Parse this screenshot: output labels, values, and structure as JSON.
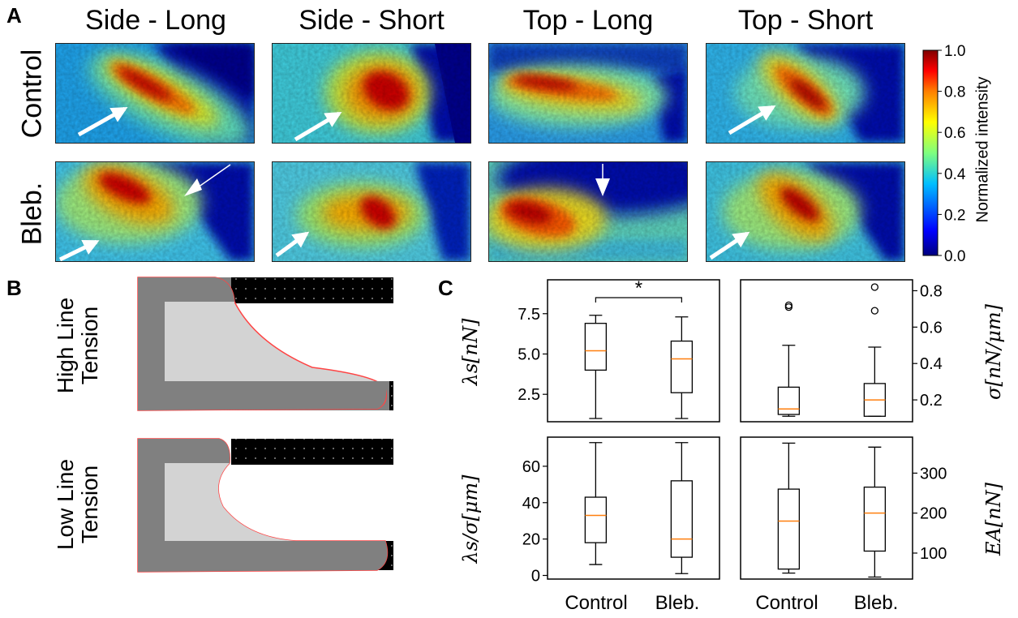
{
  "panels": {
    "a": "A",
    "b": "B",
    "c": "C"
  },
  "heatmaps": {
    "columns": [
      "Side - Long",
      "Side - Short",
      "Top - Long",
      "Top - Short"
    ],
    "rows": [
      "Control",
      "Bleb."
    ]
  },
  "colorbar": {
    "label": "Normalized intensity",
    "ticks": [
      "1.0",
      "0.8",
      "0.6",
      "0.4",
      "0.2",
      "0.0"
    ],
    "colors": [
      "#00007f",
      "#0000ff",
      "#00bfff",
      "#7fff7f",
      "#ffff00",
      "#ff7f00",
      "#ff0000",
      "#7f0000"
    ]
  },
  "schematic": {
    "rows": [
      {
        "line1": "High Line",
        "line2": "Tension"
      },
      {
        "line1": "Low Line",
        "line2": "Tension"
      }
    ],
    "colors": {
      "outer": "#808080",
      "inner": "#d3d3d3",
      "outline": "#ff4444",
      "pillar": "#000000"
    }
  },
  "boxplots": {
    "x_labels": [
      "Control",
      "Bleb."
    ],
    "significance": "*",
    "median_color": "#ff7f0e",
    "axes": [
      {
        "ylabel": "λs[nN]",
        "side": "left",
        "ticks": [
          "2.5",
          "5.0",
          "7.5"
        ]
      },
      {
        "ylabel": "σ[nN/μm]",
        "side": "right",
        "ticks": [
          "0.2",
          "0.4",
          "0.6",
          "0.8"
        ]
      },
      {
        "ylabel": "λs/σ[μm]",
        "side": "left",
        "ticks": [
          "0",
          "20",
          "40",
          "60"
        ]
      },
      {
        "ylabel": "EA[nN]",
        "side": "right",
        "ticks": [
          "100",
          "200",
          "300"
        ]
      }
    ]
  },
  "chart_data": [
    {
      "type": "box",
      "ylabel": "λs[nN]",
      "categories": [
        "Control",
        "Bleb."
      ],
      "ylim": [
        0.8,
        9.6
      ],
      "boxes": [
        {
          "whisker_low": 1.0,
          "q1": 4.0,
          "median": 5.2,
          "q3": 6.9,
          "whisker_high": 7.4,
          "outliers": []
        },
        {
          "whisker_low": 1.0,
          "q1": 2.6,
          "median": 4.7,
          "q3": 5.8,
          "whisker_high": 7.3,
          "outliers": []
        }
      ]
    },
    {
      "type": "box",
      "ylabel": "σ[nN/μm]",
      "categories": [
        "Control",
        "Bleb."
      ],
      "ylim": [
        0.08,
        0.86
      ],
      "boxes": [
        {
          "whisker_low": 0.11,
          "q1": 0.12,
          "median": 0.15,
          "q3": 0.27,
          "whisker_high": 0.5,
          "outliers": [
            0.71,
            0.72
          ]
        },
        {
          "whisker_low": 0.11,
          "q1": 0.11,
          "median": 0.2,
          "q3": 0.29,
          "whisker_high": 0.49,
          "outliers": [
            0.69,
            0.82
          ]
        }
      ]
    },
    {
      "type": "box",
      "ylabel": "λs/σ[μm]",
      "categories": [
        "Control",
        "Bleb."
      ],
      "ylim": [
        -2,
        76
      ],
      "boxes": [
        {
          "whisker_low": 6,
          "q1": 18,
          "median": 33,
          "q3": 43,
          "whisker_high": 73,
          "outliers": []
        },
        {
          "whisker_low": 1,
          "q1": 10,
          "median": 20,
          "q3": 52,
          "whisker_high": 73,
          "outliers": []
        }
      ]
    },
    {
      "type": "box",
      "ylabel": "EA[nN]",
      "categories": [
        "Control",
        "Bleb."
      ],
      "ylim": [
        35,
        390
      ],
      "boxes": [
        {
          "whisker_low": 50,
          "q1": 60,
          "median": 180,
          "q3": 260,
          "whisker_high": 375,
          "outliers": []
        },
        {
          "whisker_low": 40,
          "q1": 105,
          "median": 200,
          "q3": 265,
          "whisker_high": 365,
          "outliers": []
        }
      ]
    }
  ]
}
